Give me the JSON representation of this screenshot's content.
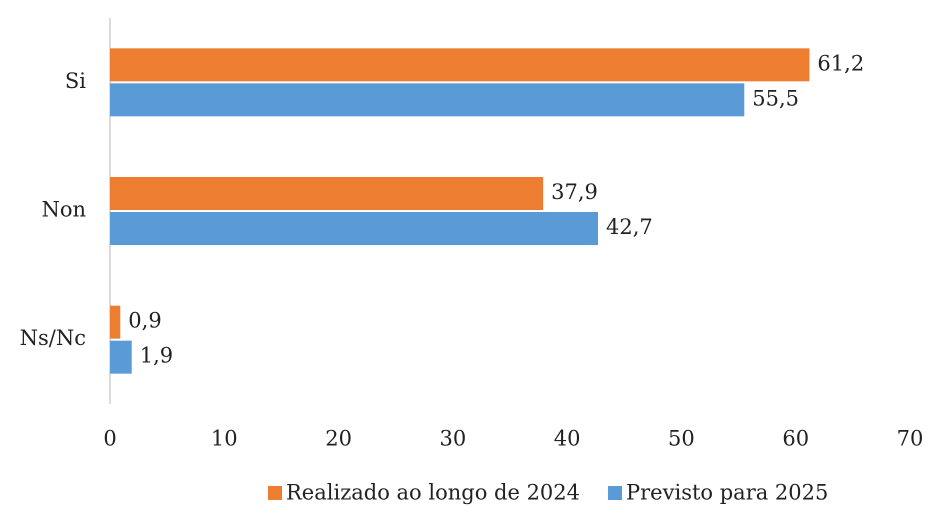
{
  "chart_data": {
    "type": "barh",
    "categories": [
      "Si",
      "Non",
      "Ns/Nc"
    ],
    "series": [
      {
        "name": "Realizado ao longo de 2024",
        "color": "#ED7D31",
        "values": [
          61.2,
          37.9,
          0.9
        ],
        "value_labels": [
          "61,2",
          "37,9",
          "0,9"
        ]
      },
      {
        "name": "Previsto para 2025",
        "color": "#5B9BD5",
        "values": [
          55.5,
          42.7,
          1.9
        ],
        "value_labels": [
          "55,5",
          "42,7",
          "1,9"
        ]
      }
    ],
    "xlim": [
      0,
      70
    ],
    "xticks": [
      0,
      10,
      20,
      30,
      40,
      50,
      60,
      70
    ],
    "grid": false,
    "legend": "bottom"
  }
}
